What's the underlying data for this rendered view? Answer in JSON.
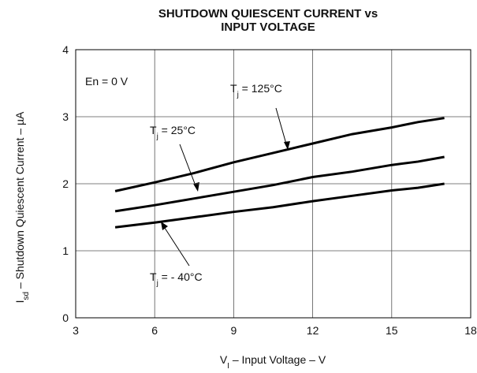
{
  "chart_data": {
    "type": "line",
    "title": [
      "SHUTDOWN QUIESCENT CURRENT vs",
      "INPUT VOLTAGE"
    ],
    "xlabel": [
      "V",
      "I",
      " – Input Voltage – V"
    ],
    "ylabel": [
      "I",
      "sd",
      " – Shutdown Quiescent Current – µA"
    ],
    "annotation": "En = 0 V",
    "xlim": [
      3,
      18
    ],
    "xticks": [
      3,
      6,
      9,
      12,
      15,
      18
    ],
    "ylim": [
      0,
      4
    ],
    "yticks": [
      0,
      1,
      2,
      3,
      4
    ],
    "grid": true,
    "x": [
      4.5,
      6,
      7.5,
      9,
      10.5,
      12,
      13.5,
      15,
      16,
      17
    ],
    "series": [
      {
        "name": [
          "T",
          "j",
          " = 125°C"
        ],
        "color": "#000000",
        "values": [
          1.89,
          2.02,
          2.16,
          2.32,
          2.46,
          2.6,
          2.74,
          2.84,
          2.92,
          2.98
        ]
      },
      {
        "name": [
          "T",
          "j",
          " = 25°C"
        ],
        "color": "#000000",
        "values": [
          1.59,
          1.68,
          1.78,
          1.88,
          1.98,
          2.1,
          2.18,
          2.28,
          2.33,
          2.4
        ]
      },
      {
        "name": [
          "T",
          "j",
          " = - 40°C"
        ],
        "color": "#000000",
        "values": [
          1.35,
          1.42,
          1.5,
          1.58,
          1.65,
          1.74,
          1.82,
          1.9,
          1.94,
          2.0
        ]
      }
    ]
  }
}
